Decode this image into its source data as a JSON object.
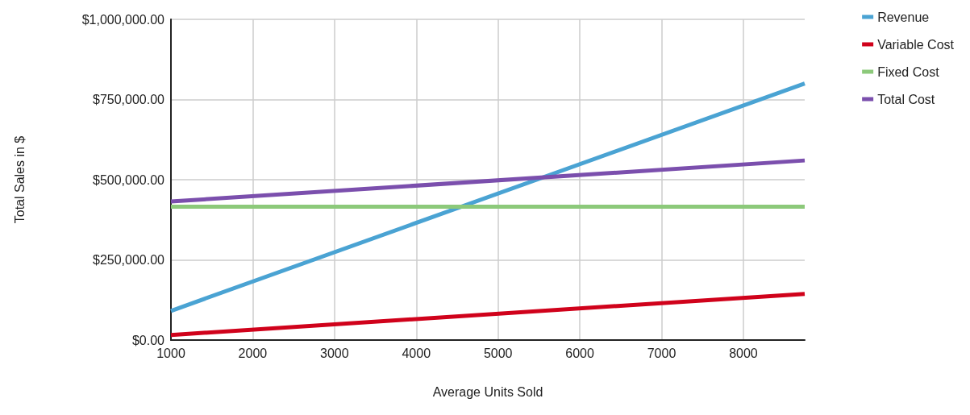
{
  "chart_data": {
    "type": "line",
    "xlabel": "Average Units Sold",
    "ylabel": "Total Sales in $",
    "x": [
      1000,
      8750
    ],
    "series": [
      {
        "name": "Revenue",
        "color": "#4aa3d3",
        "values": [
          91000,
          800000
        ]
      },
      {
        "name": "Variable Cost",
        "color": "#d0021b",
        "values": [
          16000,
          144000
        ]
      },
      {
        "name": "Fixed Cost",
        "color": "#8cc97a",
        "values": [
          416000,
          416000
        ]
      },
      {
        "name": "Total Cost",
        "color": "#7b4fad",
        "values": [
          432000,
          560000
        ]
      }
    ],
    "xlim": [
      1000,
      8750
    ],
    "xticks": [
      1000,
      2000,
      3000,
      4000,
      5000,
      6000,
      7000,
      8000
    ],
    "ylim": [
      0,
      1000000
    ],
    "yticks": [
      {
        "value": 0,
        "label": "$0.00"
      },
      {
        "value": 250000,
        "label": "$250,000.00"
      },
      {
        "value": 500000,
        "label": "$500,000.00"
      },
      {
        "value": 750000,
        "label": "$750,000.00"
      },
      {
        "value": 1000000,
        "label": "$1,000,000.00"
      }
    ],
    "grid": true,
    "legend": "top right",
    "marker": "none",
    "line_style": "solid"
  }
}
